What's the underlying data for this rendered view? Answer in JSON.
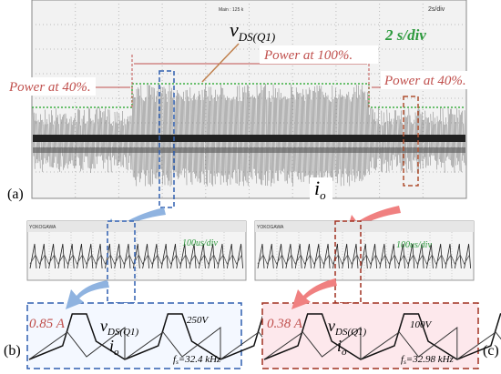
{
  "panel_a": {
    "label": "(a)",
    "scope_header": "Main : 125 k",
    "scope_timebase": "2s/div",
    "time_div": "2 s/div",
    "power_mid": "Power at 100%.",
    "power_left": "Power at 40%.",
    "power_right": "Power at 40%.",
    "vds": {
      "main": "v",
      "sub": "DS(Q1)"
    },
    "io": {
      "main": "i",
      "sub": "o"
    }
  },
  "panel_b": {
    "label": "(b)",
    "scope_brand": "YOKOGAWA",
    "time_div": "100us/div",
    "current": "0.85 A",
    "voltage": "250V",
    "vds": {
      "main": "v",
      "sub": "DS(Q1)"
    },
    "io": {
      "main": "i",
      "sub": "o"
    },
    "freq": {
      "main": "f",
      "sub": "s",
      "rest": "=32.4 kHz"
    }
  },
  "panel_c": {
    "label": "(c)",
    "scope_brand": "YOKOGAWA",
    "time_div": "100us/div",
    "current": "0.38 A",
    "voltage": "100V",
    "vds": {
      "main": "v",
      "sub": "DS(Q1)"
    },
    "io": {
      "main": "i",
      "sub": "o"
    },
    "freq": {
      "main": "f",
      "sub": "s",
      "rest": "=32.98 kHz"
    }
  }
}
